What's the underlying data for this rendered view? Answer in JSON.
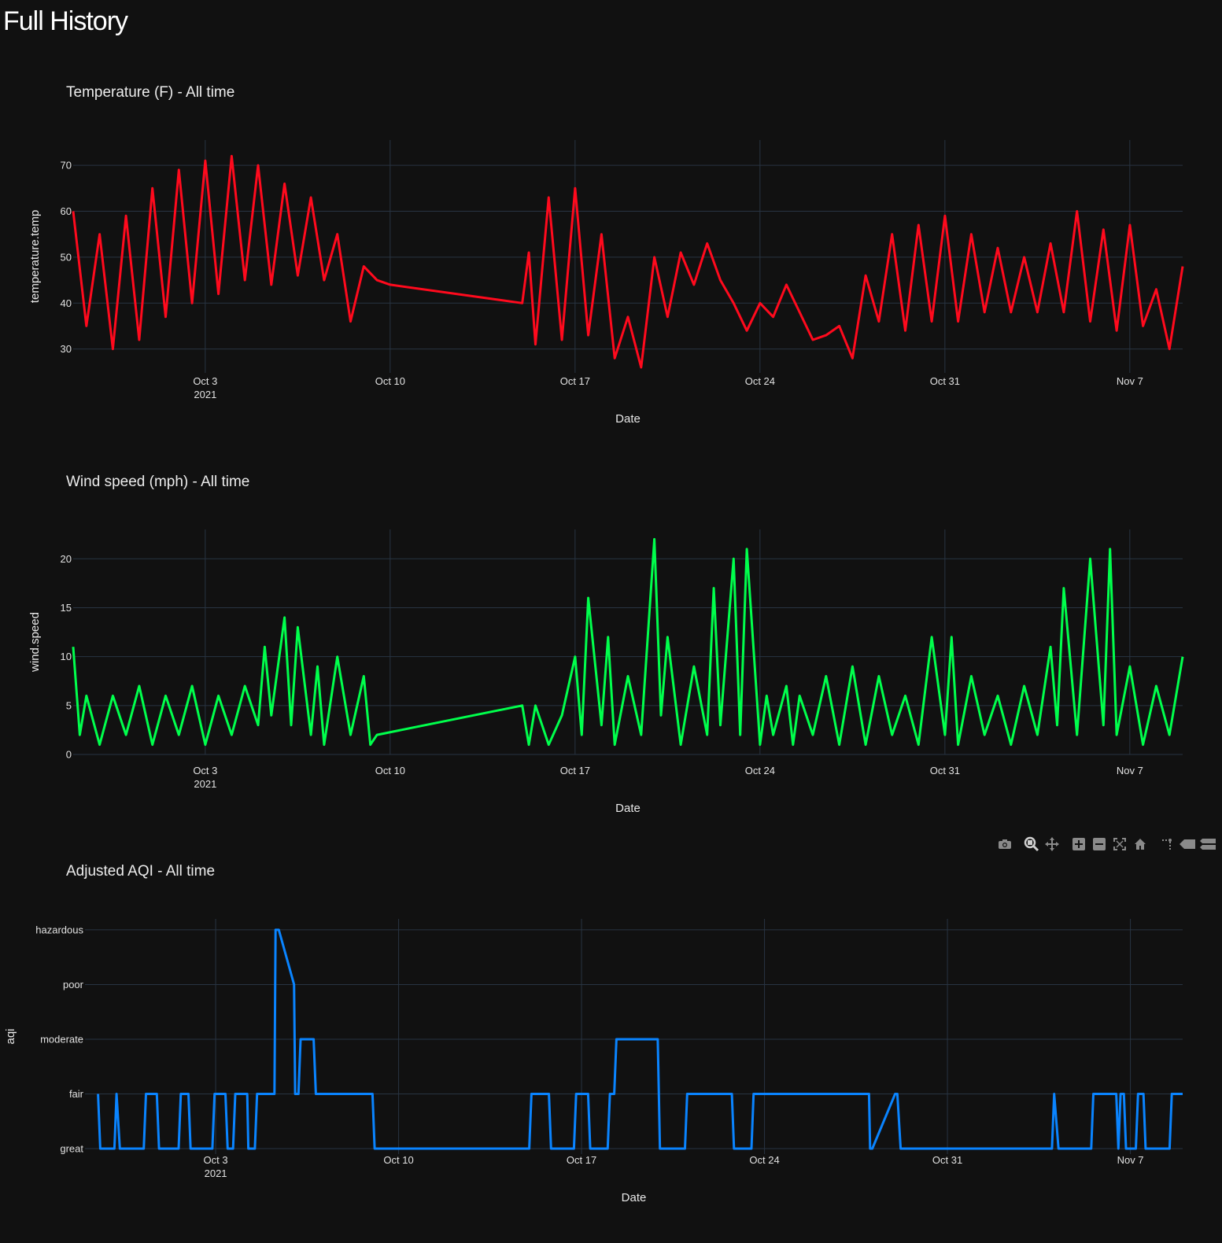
{
  "page": {
    "title": "Full History"
  },
  "modebar": {
    "buttons": [
      "camera-icon",
      "zoom-icon",
      "pan-icon",
      "zoom-in-icon",
      "zoom-out-icon",
      "autoscale-icon",
      "reset-axes-icon",
      "spike-lines-icon",
      "hover-closest-icon",
      "hover-compare-icon"
    ]
  },
  "chart_data": [
    {
      "type": "line",
      "title": "Temperature (F) - All time",
      "xlabel": "Date",
      "ylabel": "temperature.temp",
      "color": "#ff0a1d",
      "x_range": [
        "2021-09-28",
        "2021-11-09"
      ],
      "ylim": [
        24.8,
        75.5
      ],
      "y_ticks": [
        30,
        40,
        50,
        60,
        70
      ],
      "x_ticks": [
        {
          "date": "2021-10-03",
          "label": "Oct 3",
          "sublabel": "2021"
        },
        {
          "date": "2021-10-10",
          "label": "Oct 10"
        },
        {
          "date": "2021-10-17",
          "label": "Oct 17"
        },
        {
          "date": "2021-10-24",
          "label": "Oct 24"
        },
        {
          "date": "2021-10-31",
          "label": "Oct 31"
        },
        {
          "date": "2021-11-07",
          "label": "Nov 7"
        }
      ],
      "grid": true,
      "series": [
        {
          "x": [
            "2021-09-28 00:00",
            "2021-09-28 12:00",
            "2021-09-29 00:00",
            "2021-09-29 12:00",
            "2021-09-30 00:00",
            "2021-09-30 12:00",
            "2021-10-01 00:00",
            "2021-10-01 12:00",
            "2021-10-02 00:00",
            "2021-10-02 12:00",
            "2021-10-03 00:00",
            "2021-10-03 12:00",
            "2021-10-04 00:00",
            "2021-10-04 12:00",
            "2021-10-05 00:00",
            "2021-10-05 12:00",
            "2021-10-06 00:00",
            "2021-10-06 12:00",
            "2021-10-07 00:00",
            "2021-10-07 12:00",
            "2021-10-08 00:00",
            "2021-10-08 12:00",
            "2021-10-09 00:00",
            "2021-10-09 12:00",
            "2021-10-10 00:00",
            "2021-10-15 00:00",
            "2021-10-15 06:00",
            "2021-10-15 12:00",
            "2021-10-16 00:00",
            "2021-10-16 12:00",
            "2021-10-17 00:00",
            "2021-10-17 12:00",
            "2021-10-18 00:00",
            "2021-10-18 12:00",
            "2021-10-19 00:00",
            "2021-10-19 12:00",
            "2021-10-20 00:00",
            "2021-10-20 12:00",
            "2021-10-21 00:00",
            "2021-10-21 12:00",
            "2021-10-22 00:00",
            "2021-10-22 12:00",
            "2021-10-23 00:00",
            "2021-10-23 12:00",
            "2021-10-24 00:00",
            "2021-10-24 12:00",
            "2021-10-25 00:00",
            "2021-10-25 12:00",
            "2021-10-26 00:00",
            "2021-10-26 12:00",
            "2021-10-27 00:00",
            "2021-10-27 12:00",
            "2021-10-28 00:00",
            "2021-10-28 12:00",
            "2021-10-29 00:00",
            "2021-10-29 12:00",
            "2021-10-30 00:00",
            "2021-10-30 12:00",
            "2021-10-31 00:00",
            "2021-10-31 12:00",
            "2021-11-01 00:00",
            "2021-11-01 12:00",
            "2021-11-02 00:00",
            "2021-11-02 12:00",
            "2021-11-03 00:00",
            "2021-11-03 12:00",
            "2021-11-04 00:00",
            "2021-11-04 12:00",
            "2021-11-05 00:00",
            "2021-11-05 12:00",
            "2021-11-06 00:00",
            "2021-11-06 12:00",
            "2021-11-07 00:00",
            "2021-11-07 12:00",
            "2021-11-08 00:00",
            "2021-11-08 12:00",
            "2021-11-09 00:00"
          ],
          "y": [
            60,
            35,
            55,
            30,
            59,
            32,
            65,
            37,
            69,
            40,
            71,
            42,
            72,
            45,
            70,
            44,
            66,
            46,
            63,
            45,
            55,
            36,
            48,
            45,
            44,
            40,
            51,
            31,
            63,
            32,
            65,
            33,
            55,
            28,
            37,
            26,
            50,
            37,
            51,
            44,
            53,
            45,
            40,
            34,
            40,
            37,
            44,
            38,
            32,
            33,
            35,
            28,
            46,
            36,
            55,
            34,
            57,
            36,
            59,
            36,
            55,
            38,
            52,
            38,
            50,
            38,
            53,
            38,
            60,
            36,
            56,
            34,
            57,
            35,
            43,
            30,
            48
          ]
        }
      ]
    },
    {
      "type": "line",
      "title": "Wind speed (mph) - All time",
      "xlabel": "Date",
      "ylabel": "wind.speed",
      "color": "#00ff4c",
      "x_range": [
        "2021-09-28",
        "2021-11-09"
      ],
      "ylim": [
        0,
        23
      ],
      "y_ticks": [
        0,
        5,
        10,
        15,
        20
      ],
      "x_ticks": [
        {
          "date": "2021-10-03",
          "label": "Oct 3",
          "sublabel": "2021"
        },
        {
          "date": "2021-10-10",
          "label": "Oct 10"
        },
        {
          "date": "2021-10-17",
          "label": "Oct 17"
        },
        {
          "date": "2021-10-24",
          "label": "Oct 24"
        },
        {
          "date": "2021-10-31",
          "label": "Oct 31"
        },
        {
          "date": "2021-11-07",
          "label": "Nov 7"
        }
      ],
      "grid": true,
      "series": [
        {
          "x": [
            "2021-09-28 00:00",
            "2021-09-28 06:00",
            "2021-09-28 12:00",
            "2021-09-29 00:00",
            "2021-09-29 12:00",
            "2021-09-30 00:00",
            "2021-09-30 12:00",
            "2021-10-01 00:00",
            "2021-10-01 12:00",
            "2021-10-02 00:00",
            "2021-10-02 12:00",
            "2021-10-03 00:00",
            "2021-10-03 12:00",
            "2021-10-04 00:00",
            "2021-10-04 12:00",
            "2021-10-05 00:00",
            "2021-10-05 06:00",
            "2021-10-05 12:00",
            "2021-10-06 00:00",
            "2021-10-06 06:00",
            "2021-10-06 12:00",
            "2021-10-07 00:00",
            "2021-10-07 06:00",
            "2021-10-07 12:00",
            "2021-10-08 00:00",
            "2021-10-08 12:00",
            "2021-10-09 00:00",
            "2021-10-09 06:00",
            "2021-10-09 12:00",
            "2021-10-15 00:00",
            "2021-10-15 06:00",
            "2021-10-15 12:00",
            "2021-10-16 00:00",
            "2021-10-16 12:00",
            "2021-10-17 00:00",
            "2021-10-17 06:00",
            "2021-10-17 12:00",
            "2021-10-18 00:00",
            "2021-10-18 06:00",
            "2021-10-18 12:00",
            "2021-10-19 00:00",
            "2021-10-19 12:00",
            "2021-10-20 00:00",
            "2021-10-20 06:00",
            "2021-10-20 12:00",
            "2021-10-21 00:00",
            "2021-10-21 12:00",
            "2021-10-22 00:00",
            "2021-10-22 06:00",
            "2021-10-22 12:00",
            "2021-10-23 00:00",
            "2021-10-23 06:00",
            "2021-10-23 12:00",
            "2021-10-24 00:00",
            "2021-10-24 06:00",
            "2021-10-24 12:00",
            "2021-10-25 00:00",
            "2021-10-25 06:00",
            "2021-10-25 12:00",
            "2021-10-26 00:00",
            "2021-10-26 12:00",
            "2021-10-27 00:00",
            "2021-10-27 12:00",
            "2021-10-28 00:00",
            "2021-10-28 12:00",
            "2021-10-29 00:00",
            "2021-10-29 12:00",
            "2021-10-30 00:00",
            "2021-10-30 12:00",
            "2021-10-31 00:00",
            "2021-10-31 06:00",
            "2021-10-31 12:00",
            "2021-11-01 00:00",
            "2021-11-01 12:00",
            "2021-11-02 00:00",
            "2021-11-02 12:00",
            "2021-11-03 00:00",
            "2021-11-03 12:00",
            "2021-11-04 00:00",
            "2021-11-04 06:00",
            "2021-11-04 12:00",
            "2021-11-05 00:00",
            "2021-11-05 12:00",
            "2021-11-06 00:00",
            "2021-11-06 06:00",
            "2021-11-06 12:00",
            "2021-11-07 00:00",
            "2021-11-07 12:00",
            "2021-11-08 00:00",
            "2021-11-08 12:00",
            "2021-11-09 00:00"
          ],
          "y": [
            11,
            2,
            6,
            1,
            6,
            2,
            7,
            1,
            6,
            2,
            7,
            1,
            6,
            2,
            7,
            3,
            11,
            4,
            14,
            3,
            13,
            2,
            9,
            1,
            10,
            2,
            8,
            1,
            2,
            5,
            1,
            5,
            1,
            4,
            10,
            2,
            16,
            3,
            12,
            1,
            8,
            2,
            22,
            4,
            12,
            1,
            9,
            2,
            17,
            3,
            20,
            2,
            21,
            1,
            6,
            2,
            7,
            1,
            6,
            2,
            8,
            1,
            9,
            1,
            8,
            2,
            6,
            1,
            12,
            2,
            12,
            1,
            8,
            2,
            6,
            1,
            7,
            2,
            11,
            3,
            17,
            2,
            20,
            3,
            21,
            2,
            9,
            1,
            7,
            2,
            10
          ]
        }
      ]
    },
    {
      "type": "line",
      "title": "Adjusted AQI - All time",
      "xlabel": "Date",
      "ylabel": "aqi",
      "color": "#0a84ff",
      "x_range": [
        "2021-09-28",
        "2021-11-09"
      ],
      "y_categories": [
        "great",
        "fair",
        "moderate",
        "poor",
        "hazardous"
      ],
      "ylim": [
        -0.1,
        4.2
      ],
      "x_ticks": [
        {
          "date": "2021-10-03",
          "label": "Oct 3",
          "sublabel": "2021"
        },
        {
          "date": "2021-10-10",
          "label": "Oct 10"
        },
        {
          "date": "2021-10-17",
          "label": "Oct 17"
        },
        {
          "date": "2021-10-24",
          "label": "Oct 24"
        },
        {
          "date": "2021-10-31",
          "label": "Oct 31"
        },
        {
          "date": "2021-11-07",
          "label": "Nov 7"
        }
      ],
      "grid": true,
      "series": [
        {
          "x": [
            "2021-09-28 12:00",
            "2021-09-28 14:00",
            "2021-09-29 03:00",
            "2021-09-29 05:00",
            "2021-09-29 08:00",
            "2021-09-30 06:00",
            "2021-09-30 08:00",
            "2021-09-30 18:00",
            "2021-09-30 20:00",
            "2021-10-01 14:00",
            "2021-10-01 16:00",
            "2021-10-01 23:00",
            "2021-10-02 01:00",
            "2021-10-02 21:00",
            "2021-10-02 23:00",
            "2021-10-03 09:00",
            "2021-10-03 11:00",
            "2021-10-03 16:00",
            "2021-10-03 18:00",
            "2021-10-04 05:00",
            "2021-10-04 06:00",
            "2021-10-04 12:00",
            "2021-10-04 14:00",
            "2021-10-05 06:00",
            "2021-10-05 07:00",
            "2021-10-05 08:00",
            "2021-10-05 10:00",
            "2021-10-06 00:00",
            "2021-10-06 01:00",
            "2021-10-06 04:00",
            "2021-10-06 06:00",
            "2021-10-06 18:00",
            "2021-10-06 20:00",
            "2021-10-09 00:00",
            "2021-10-09 02:00",
            "2021-10-15 00:00",
            "2021-10-15 02:00",
            "2021-10-15 18:00",
            "2021-10-15 20:00",
            "2021-10-16 17:00",
            "2021-10-16 19:00",
            "2021-10-17 06:00",
            "2021-10-17 08:00",
            "2021-10-18 00:00",
            "2021-10-18 02:00",
            "2021-10-18 06:00",
            "2021-10-18 08:00",
            "2021-10-19 22:00",
            "2021-10-20 00:00",
            "2021-10-20 23:00",
            "2021-10-21 01:00",
            "2021-10-22 18:00",
            "2021-10-22 20:00",
            "2021-10-23 12:00",
            "2021-10-23 14:00",
            "2021-10-28 00:00",
            "2021-10-28 01:00",
            "2021-10-28 03:00",
            "2021-10-29 00:00",
            "2021-10-29 02:00",
            "2021-10-29 05:00",
            "2021-11-04 00:00",
            "2021-11-04 02:00",
            "2021-11-04 06:00",
            "2021-11-05 12:00",
            "2021-11-05 14:00",
            "2021-11-06 11:00",
            "2021-11-06 13:00",
            "2021-11-06 15:00",
            "2021-11-06 18:00",
            "2021-11-06 20:00",
            "2021-11-07 05:00",
            "2021-11-07 07:00",
            "2021-11-07 12:00",
            "2021-11-07 14:00",
            "2021-11-08 12:00",
            "2021-11-08 14:00",
            "2021-11-09 00:00"
          ],
          "y": [
            1,
            0,
            0,
            1,
            0,
            0,
            1,
            1,
            0,
            0,
            1,
            1,
            0,
            0,
            1,
            1,
            0,
            0,
            1,
            1,
            0,
            0,
            1,
            1,
            4,
            4,
            4,
            3,
            1,
            1,
            2,
            2,
            1,
            1,
            0,
            0,
            1,
            1,
            0,
            0,
            1,
            1,
            0,
            0,
            1,
            1,
            2,
            2,
            0,
            0,
            1,
            1,
            0,
            0,
            1,
            1,
            0,
            0,
            1,
            1,
            0,
            0,
            1,
            0,
            0,
            1,
            1,
            0,
            1,
            1,
            0,
            0,
            1,
            1,
            0,
            0,
            1,
            1
          ]
        }
      ]
    }
  ]
}
